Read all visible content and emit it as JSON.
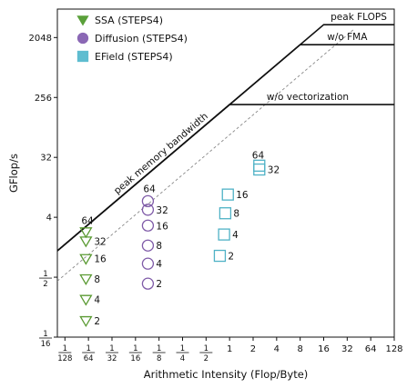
{
  "chart_data": {
    "type": "scatter",
    "xlabel": "Arithmetic Intensity (Flop/Byte)",
    "ylabel": "GFlop/s",
    "x_scale": "log2",
    "y_scale": "log2",
    "xlim": [
      0.00625,
      128
    ],
    "ylim": [
      0.0625,
      5500
    ],
    "x_ticks": [
      {
        "v": 0.0078125,
        "num": "1",
        "den": "128"
      },
      {
        "v": 0.015625,
        "num": "1",
        "den": "64"
      },
      {
        "v": 0.03125,
        "num": "1",
        "den": "32"
      },
      {
        "v": 0.0625,
        "num": "1",
        "den": "16"
      },
      {
        "v": 0.125,
        "num": "1",
        "den": "8"
      },
      {
        "v": 0.25,
        "num": "1",
        "den": "4"
      },
      {
        "v": 0.5,
        "num": "1",
        "den": "2"
      },
      {
        "v": 1,
        "label": "1"
      },
      {
        "v": 2,
        "label": "2"
      },
      {
        "v": 4,
        "label": "4"
      },
      {
        "v": 8,
        "label": "8"
      },
      {
        "v": 16,
        "label": "16"
      },
      {
        "v": 32,
        "label": "32"
      },
      {
        "v": 64,
        "label": "64"
      },
      {
        "v": 128,
        "label": "128"
      }
    ],
    "y_ticks": [
      {
        "v": 0.0625,
        "num": "1",
        "den": "16"
      },
      {
        "v": 0.5,
        "num": "1",
        "den": "2"
      },
      {
        "v": 4,
        "label": "4"
      },
      {
        "v": 32,
        "label": "32"
      },
      {
        "v": 256,
        "label": "256"
      },
      {
        "v": 2048,
        "label": "2048"
      }
    ],
    "roofs": [
      {
        "name": "peak FLOPS",
        "bandwidth": 200,
        "ceiling": 3200,
        "dashed": false
      },
      {
        "name": "w/o FMA",
        "bandwidth": 200,
        "ceiling": 1600,
        "dashed": false
      },
      {
        "name": "w/o vectorization",
        "bandwidth": 200,
        "ceiling": 200,
        "dashed": false
      }
    ],
    "roof_label_bandwidth": "peak memory bandwidth",
    "dashed_line": {
      "bandwidth": 70
    },
    "series": [
      {
        "name": "SSA (STEPS4)",
        "marker": "triangle-down",
        "color": "#5a9a32",
        "filled_legend": "#5aa03a",
        "points": [
          {
            "x": 0.0145,
            "y": 2.4,
            "label": "64"
          },
          {
            "x": 0.0145,
            "y": 1.75,
            "label": "32"
          },
          {
            "x": 0.0145,
            "y": 0.95,
            "label": "16"
          },
          {
            "x": 0.0145,
            "y": 0.47,
            "label": "8"
          },
          {
            "x": 0.0145,
            "y": 0.23,
            "label": "4"
          },
          {
            "x": 0.0145,
            "y": 0.11,
            "label": "2"
          }
        ]
      },
      {
        "name": "Diffusion (STEPS4)",
        "marker": "circle",
        "color": "#7f5ba8",
        "filled_legend": "#8b68b5",
        "points": [
          {
            "x": 0.09,
            "y": 7.0,
            "label": "64"
          },
          {
            "x": 0.09,
            "y": 5.2,
            "label": "32"
          },
          {
            "x": 0.09,
            "y": 3.0,
            "label": "16"
          },
          {
            "x": 0.09,
            "y": 1.5,
            "label": "8"
          },
          {
            "x": 0.09,
            "y": 0.8,
            "label": "4"
          },
          {
            "x": 0.09,
            "y": 0.4,
            "label": "2"
          }
        ]
      },
      {
        "name": "EField (STEPS4)",
        "marker": "square",
        "color": "#4fb2c6",
        "filled_legend": "#5fbdd0",
        "points": [
          {
            "x": 2.4,
            "y": 24.0,
            "label": "64"
          },
          {
            "x": 2.4,
            "y": 21.0,
            "label": "32"
          },
          {
            "x": 0.95,
            "y": 8.8,
            "label": "16"
          },
          {
            "x": 0.88,
            "y": 4.6,
            "label": "8"
          },
          {
            "x": 0.85,
            "y": 2.2,
            "label": "4"
          },
          {
            "x": 0.75,
            "y": 1.05,
            "label": "2"
          }
        ]
      }
    ]
  }
}
